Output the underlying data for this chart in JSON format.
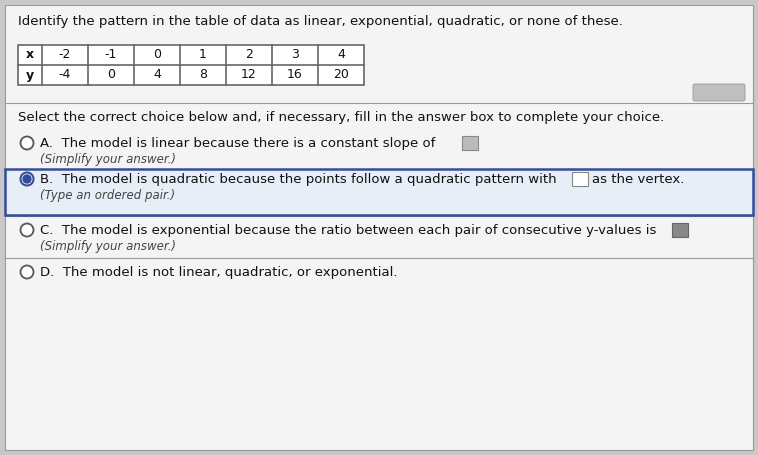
{
  "title": "Identify the pattern in the table of data as linear, exponential, quadratic, or none of these.",
  "table_x": [
    "x",
    "-2",
    "-1",
    "0",
    "1",
    "2",
    "3",
    "4"
  ],
  "table_y": [
    "y",
    "-4",
    "0",
    "4",
    "8",
    "12",
    "16",
    "20"
  ],
  "instruction": "Select the correct choice below and, if necessary, fill in the answer box to complete your choice.",
  "choice_A_text": "The model is linear because there is a constant slope of",
  "choice_A_sub": "(Simplify your answer.)",
  "choice_B_text": "The model is quadratic because the points follow a quadratic pattern with",
  "choice_B_suffix": "as the vertex.",
  "choice_B_sub": "(Type an ordered pair.)",
  "choice_C_text": "The model is exponential because the ratio between each pair of consecutive y-values is",
  "choice_C_sub": "(Simplify your answer.)",
  "choice_D_text": "The model is not linear, quadratic, or exponential.",
  "bg_color": "#c8c8c8",
  "panel_color": "#f4f4f4",
  "table_border_color": "#666666",
  "text_color": "#111111",
  "highlight_bg": "#e8eef8",
  "highlight_border": "#334d99",
  "radio_selected_color": "#334d99",
  "radio_unselected_color": "#555555",
  "scroll_button_color": "#c0c0c0",
  "sep_line_color": "#999999"
}
